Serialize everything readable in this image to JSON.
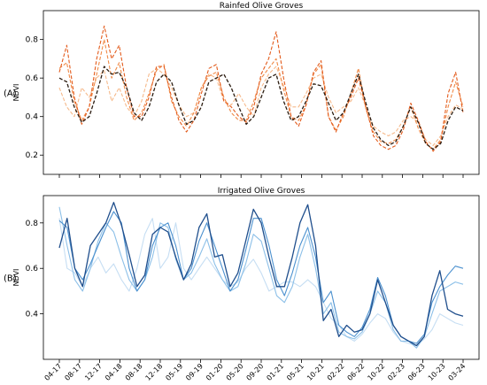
{
  "chart_data": [
    {
      "type": "line",
      "title": "Rainfed Olive Groves",
      "panel_label": "(A)",
      "ylabel": "NDVI",
      "ylim": [
        0.1,
        0.95
      ],
      "yticks": [
        0.2,
        0.4,
        0.6,
        0.8
      ],
      "x_tick_labels": [
        "04-17",
        "08-17",
        "12-17",
        "04-18",
        "08-18",
        "12-18",
        "05-19",
        "09-19",
        "01-20",
        "05-20",
        "09-20",
        "01-21",
        "05-21",
        "10-21",
        "02-22",
        "06-22",
        "10-22",
        "02-23",
        "06-23",
        "10-23",
        "03-24"
      ],
      "grid": false,
      "linestyle": "dashed",
      "colors": [
        "#2b1c10",
        "#e35b1c",
        "#f08a47",
        "#f6b98a"
      ],
      "series": [
        {
          "values": [
            0.6,
            0.58,
            0.45,
            0.37,
            0.4,
            0.52,
            0.66,
            0.62,
            0.63,
            0.55,
            0.42,
            0.38,
            0.45,
            0.58,
            0.62,
            0.58,
            0.46,
            0.36,
            0.38,
            0.45,
            0.58,
            0.6,
            0.62,
            0.55,
            0.45,
            0.36,
            0.4,
            0.5,
            0.6,
            0.62,
            0.48,
            0.38,
            0.4,
            0.48,
            0.57,
            0.56,
            0.47,
            0.38,
            0.42,
            0.52,
            0.62,
            0.47,
            0.34,
            0.28,
            0.25,
            0.27,
            0.35,
            0.45,
            0.37,
            0.26,
            0.23,
            0.26,
            0.38,
            0.45,
            0.43
          ]
        },
        {
          "values": [
            0.63,
            0.77,
            0.5,
            0.36,
            0.45,
            0.7,
            0.87,
            0.7,
            0.77,
            0.55,
            0.4,
            0.4,
            0.5,
            0.66,
            0.66,
            0.5,
            0.38,
            0.32,
            0.38,
            0.52,
            0.65,
            0.67,
            0.48,
            0.45,
            0.4,
            0.37,
            0.45,
            0.62,
            0.7,
            0.84,
            0.6,
            0.4,
            0.35,
            0.46,
            0.63,
            0.69,
            0.4,
            0.32,
            0.42,
            0.5,
            0.6,
            0.45,
            0.3,
            0.25,
            0.23,
            0.25,
            0.33,
            0.47,
            0.38,
            0.27,
            0.22,
            0.27,
            0.52,
            0.63,
            0.42
          ]
        },
        {
          "values": [
            0.65,
            0.68,
            0.48,
            0.38,
            0.45,
            0.62,
            0.8,
            0.6,
            0.68,
            0.5,
            0.38,
            0.42,
            0.52,
            0.64,
            0.67,
            0.48,
            0.4,
            0.35,
            0.42,
            0.55,
            0.61,
            0.63,
            0.5,
            0.42,
            0.38,
            0.38,
            0.48,
            0.6,
            0.65,
            0.7,
            0.54,
            0.4,
            0.38,
            0.46,
            0.62,
            0.67,
            0.4,
            0.33,
            0.4,
            0.52,
            0.65,
            0.44,
            0.32,
            0.27,
            0.26,
            0.28,
            0.35,
            0.45,
            0.34,
            0.26,
            0.23,
            0.28,
            0.45,
            0.58,
            0.45
          ]
        },
        {
          "values": [
            0.55,
            0.45,
            0.4,
            0.55,
            0.5,
            0.6,
            0.64,
            0.48,
            0.55,
            0.45,
            0.4,
            0.48,
            0.62,
            0.65,
            0.62,
            0.55,
            0.46,
            0.4,
            0.42,
            0.55,
            0.62,
            0.6,
            0.48,
            0.46,
            0.52,
            0.45,
            0.4,
            0.55,
            0.62,
            0.66,
            0.56,
            0.45,
            0.45,
            0.52,
            0.6,
            0.62,
            0.5,
            0.42,
            0.45,
            0.48,
            0.55,
            0.45,
            0.35,
            0.32,
            0.3,
            0.32,
            0.38,
            0.4,
            0.37,
            0.28,
            0.25,
            0.3,
            0.4,
            0.46,
            0.44
          ]
        }
      ]
    },
    {
      "type": "line",
      "title": "Irrigated Olive Groves",
      "panel_label": "(B)",
      "ylabel": "NDVI",
      "ylim": [
        0.2,
        0.92
      ],
      "yticks": [
        0.4,
        0.6,
        0.8
      ],
      "x_tick_labels": [
        "04-17",
        "08-17",
        "12-17",
        "04-18",
        "08-18",
        "12-18",
        "05-19",
        "09-19",
        "01-20",
        "05-20",
        "09-20",
        "01-21",
        "05-21",
        "10-21",
        "02-22",
        "06-22",
        "10-22",
        "02-23",
        "06-23",
        "10-23",
        "03-24"
      ],
      "grid": false,
      "linestyle": "solid",
      "colors": [
        "#1f4e8c",
        "#4c91cf",
        "#8dc0e8",
        "#c6def3"
      ],
      "series": [
        {
          "values": [
            0.69,
            0.82,
            0.6,
            0.52,
            0.7,
            0.75,
            0.8,
            0.89,
            0.79,
            0.66,
            0.52,
            0.57,
            0.75,
            0.78,
            0.76,
            0.65,
            0.55,
            0.62,
            0.78,
            0.84,
            0.65,
            0.66,
            0.52,
            0.58,
            0.72,
            0.86,
            0.8,
            0.65,
            0.52,
            0.52,
            0.65,
            0.8,
            0.88,
            0.7,
            0.37,
            0.42,
            0.3,
            0.35,
            0.32,
            0.33,
            0.4,
            0.55,
            0.45,
            0.35,
            0.3,
            0.28,
            0.26,
            0.3,
            0.48,
            0.59,
            0.42,
            0.4,
            0.39
          ]
        },
        {
          "values": [
            0.81,
            0.78,
            0.6,
            0.55,
            0.62,
            0.7,
            0.78,
            0.85,
            0.8,
            0.6,
            0.5,
            0.55,
            0.7,
            0.78,
            0.8,
            0.7,
            0.55,
            0.6,
            0.72,
            0.8,
            0.7,
            0.6,
            0.5,
            0.55,
            0.68,
            0.82,
            0.82,
            0.7,
            0.55,
            0.48,
            0.58,
            0.7,
            0.78,
            0.65,
            0.45,
            0.5,
            0.35,
            0.32,
            0.3,
            0.34,
            0.42,
            0.56,
            0.48,
            0.35,
            0.3,
            0.28,
            0.27,
            0.31,
            0.45,
            0.52,
            0.57,
            0.61,
            0.6
          ]
        },
        {
          "values": [
            0.87,
            0.7,
            0.55,
            0.5,
            0.6,
            0.72,
            0.8,
            0.76,
            0.65,
            0.55,
            0.5,
            0.55,
            0.65,
            0.8,
            0.78,
            0.64,
            0.55,
            0.58,
            0.65,
            0.73,
            0.62,
            0.55,
            0.5,
            0.52,
            0.62,
            0.75,
            0.72,
            0.6,
            0.48,
            0.45,
            0.52,
            0.65,
            0.75,
            0.6,
            0.4,
            0.45,
            0.32,
            0.3,
            0.29,
            0.32,
            0.4,
            0.5,
            0.45,
            0.33,
            0.28,
            0.28,
            0.25,
            0.3,
            0.4,
            0.5,
            0.52,
            0.54,
            0.53
          ]
        },
        {
          "values": [
            0.82,
            0.6,
            0.58,
            0.52,
            0.6,
            0.65,
            0.58,
            0.62,
            0.55,
            0.5,
            0.6,
            0.75,
            0.82,
            0.6,
            0.65,
            0.8,
            0.6,
            0.55,
            0.6,
            0.65,
            0.6,
            0.55,
            0.52,
            0.54,
            0.6,
            0.64,
            0.58,
            0.5,
            0.52,
            0.54,
            0.54,
            0.52,
            0.55,
            0.52,
            0.45,
            0.38,
            0.35,
            0.3,
            0.28,
            0.31,
            0.36,
            0.4,
            0.38,
            0.32,
            0.28,
            0.27,
            0.26,
            0.29,
            0.33,
            0.4,
            0.38,
            0.36,
            0.35
          ]
        }
      ]
    }
  ]
}
